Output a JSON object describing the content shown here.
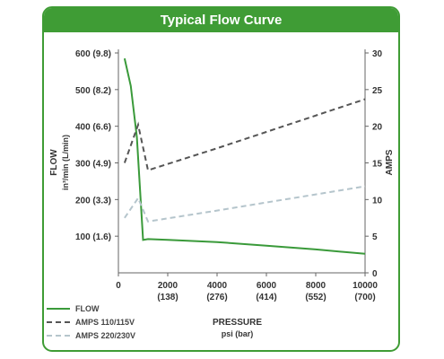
{
  "chart_data": {
    "type": "line",
    "title": "Typical Flow Curve",
    "xlabel": "PRESSURE",
    "xlabel_sub": "psi (bar)",
    "xlim": [
      0,
      10000
    ],
    "x_ticks": [
      {
        "value": 0,
        "label": "0",
        "sub": ""
      },
      {
        "value": 2000,
        "label": "2000",
        "sub": "(138)"
      },
      {
        "value": 4000,
        "label": "4000",
        "sub": "(276)"
      },
      {
        "value": 6000,
        "label": "6000",
        "sub": "(414)"
      },
      {
        "value": 8000,
        "label": "8000",
        "sub": "(552)"
      },
      {
        "value": 10000,
        "label": "10000",
        "sub": "(700)"
      }
    ],
    "y_left": {
      "label_top": "FLOW",
      "label_bottom": "in³/min (L/min)",
      "lim": [
        0,
        600
      ],
      "ticks": [
        {
          "value": 600,
          "label": "600 (9.8)"
        },
        {
          "value": 500,
          "label": "500 (8.2)"
        },
        {
          "value": 400,
          "label": "400 (6.6)"
        },
        {
          "value": 300,
          "label": "300 (4.9)"
        },
        {
          "value": 200,
          "label": "200 (3.3)"
        },
        {
          "value": 100,
          "label": "100 (1.6)"
        }
      ]
    },
    "y_right": {
      "label": "AMPS",
      "lim": [
        0,
        30
      ],
      "ticks": [
        0,
        5,
        10,
        15,
        20,
        25,
        30
      ]
    },
    "series": [
      {
        "name": "FLOW",
        "axis": "left",
        "style": "solid",
        "color": "#3a9a3a",
        "x": [
          250,
          500,
          750,
          1000,
          1200,
          2000,
          4000,
          6000,
          8000,
          10000
        ],
        "y": [
          585,
          510,
          370,
          90,
          92,
          90,
          84,
          74,
          64,
          52
        ]
      },
      {
        "name": "AMPS 110/115V",
        "axis": "right",
        "style": "dashed",
        "color": "#555555",
        "x": [
          250,
          800,
          1200,
          4000,
          10000
        ],
        "y": [
          15,
          20.2,
          14,
          17,
          23.7
        ]
      },
      {
        "name": "AMPS 220/230V",
        "axis": "right",
        "style": "dashed",
        "color": "#b5c5cc",
        "x": [
          250,
          800,
          1200,
          4000,
          10000
        ],
        "y": [
          7.5,
          10.2,
          7,
          8.5,
          11.8
        ]
      }
    ]
  }
}
